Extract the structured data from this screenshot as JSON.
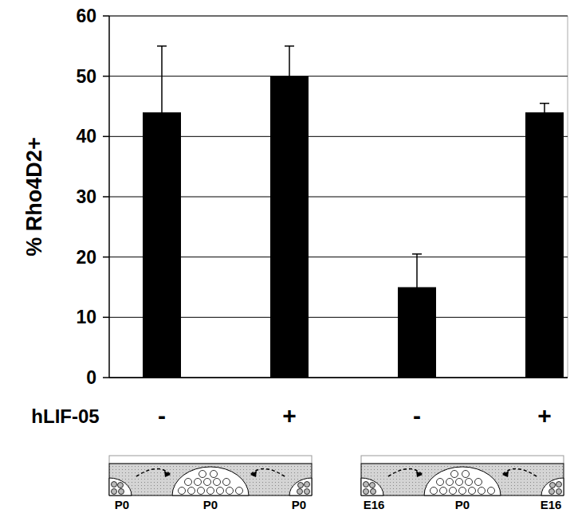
{
  "chart_data": {
    "type": "bar",
    "y_label": "% Rho4D2+",
    "x_label": "hLIF-05",
    "categories": [
      "-",
      "+",
      "-",
      "+"
    ],
    "values": [
      44,
      50,
      15,
      44
    ],
    "errors": [
      11,
      5,
      5.5,
      1.5
    ],
    "color": "#000000",
    "ylim": [
      0,
      60
    ],
    "yticks": [
      0,
      10,
      20,
      30,
      40,
      50,
      60
    ],
    "grid": true,
    "schematics": [
      {
        "labels": [
          "P0",
          "P0",
          "P0"
        ]
      },
      {
        "labels": [
          "E16",
          "P0",
          "E16"
        ]
      }
    ]
  }
}
